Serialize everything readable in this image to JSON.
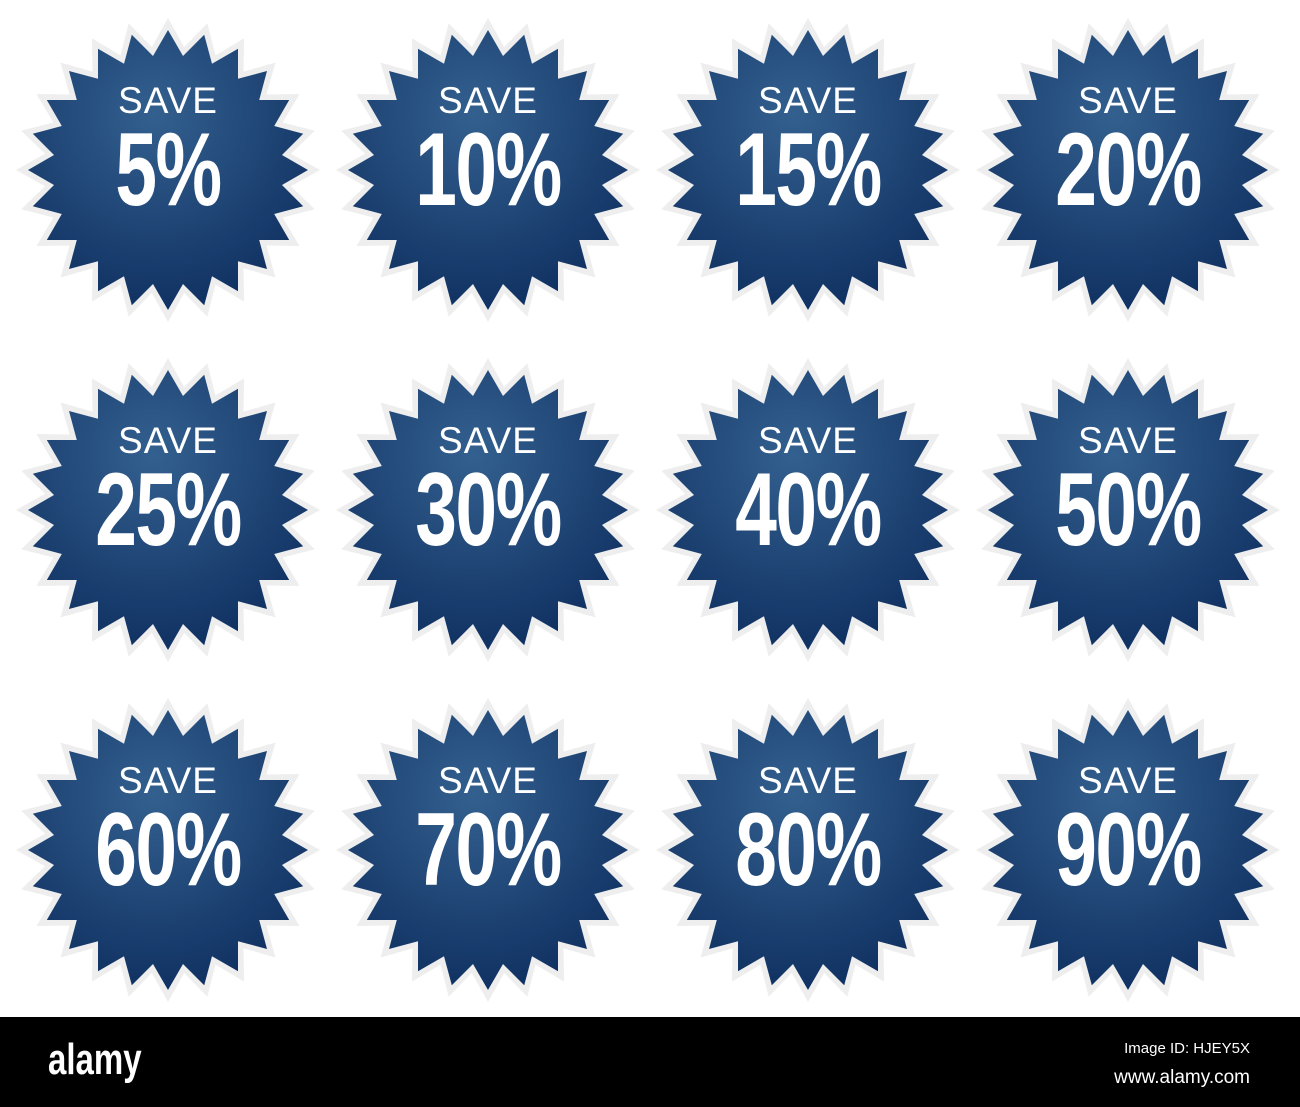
{
  "colors": {
    "badge_top": "#33608f",
    "badge_bottom": "#0b2b5c",
    "border": "#eeeeee",
    "text": "#ffffff",
    "footer": "#000000"
  },
  "badges": [
    {
      "label": "SAVE",
      "value": "5%"
    },
    {
      "label": "SAVE",
      "value": "10%"
    },
    {
      "label": "SAVE",
      "value": "15%"
    },
    {
      "label": "SAVE",
      "value": "20%"
    },
    {
      "label": "SAVE",
      "value": "25%"
    },
    {
      "label": "SAVE",
      "value": "30%"
    },
    {
      "label": "SAVE",
      "value": "40%"
    },
    {
      "label": "SAVE",
      "value": "50%"
    },
    {
      "label": "SAVE",
      "value": "60%"
    },
    {
      "label": "SAVE",
      "value": "70%"
    },
    {
      "label": "SAVE",
      "value": "80%"
    },
    {
      "label": "SAVE",
      "value": "90%"
    }
  ],
  "footer": {
    "logo": "alamy",
    "image_id": "Image ID: HJEY5X",
    "url": "www.alamy.com"
  }
}
